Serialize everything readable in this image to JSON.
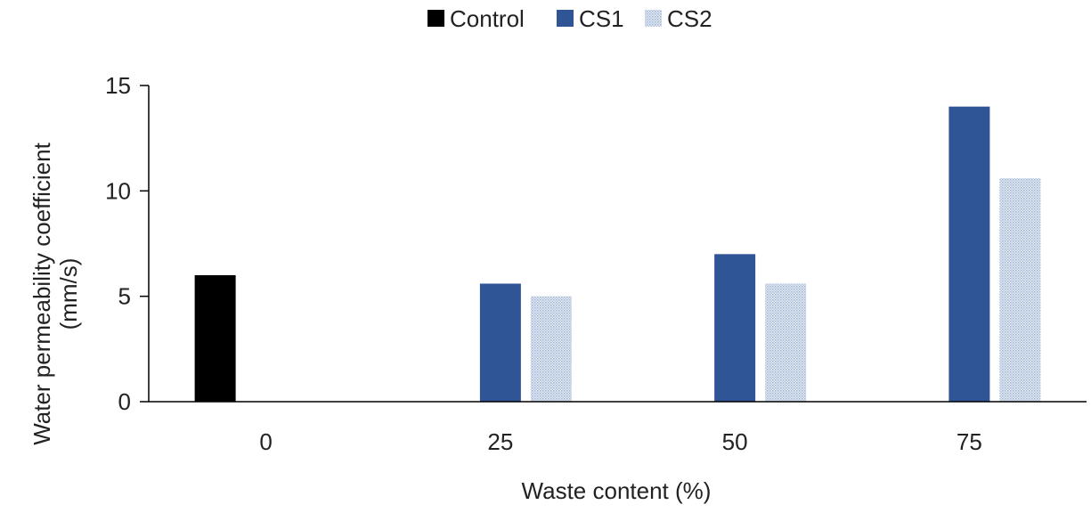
{
  "chart_data": {
    "type": "bar",
    "title": "",
    "xlabel": "Waste content (%)",
    "ylabel_line1": "Water permeability coefficient",
    "ylabel_line2": "(mm/s)",
    "categories": [
      "0",
      "25",
      "50",
      "75"
    ],
    "series": [
      {
        "name": "Control",
        "values": [
          6,
          null,
          null,
          null
        ],
        "color": "#000000",
        "pattern": "solid"
      },
      {
        "name": "CS1",
        "values": [
          null,
          5.6,
          7,
          14
        ],
        "color": "#2f5597",
        "pattern": "solid"
      },
      {
        "name": "CS2",
        "values": [
          null,
          5,
          5.6,
          10.6
        ],
        "color": "#c5d3e6",
        "pattern": "dotted"
      }
    ],
    "ylim": [
      0,
      15
    ],
    "yticks": [
      0,
      5,
      10,
      15
    ],
    "ytick_labels": [
      "0",
      "5",
      "10",
      "15"
    ],
    "grid": false,
    "legend_position": "top-center"
  }
}
